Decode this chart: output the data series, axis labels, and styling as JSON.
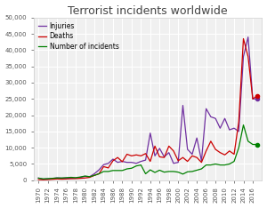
{
  "title": "Terrorist incidents worldwide",
  "years": [
    1970,
    1971,
    1972,
    1973,
    1974,
    1975,
    1976,
    1977,
    1978,
    1979,
    1980,
    1981,
    1982,
    1983,
    1984,
    1985,
    1986,
    1987,
    1988,
    1989,
    1990,
    1991,
    1992,
    1993,
    1994,
    1995,
    1996,
    1997,
    1998,
    1999,
    2000,
    2001,
    2002,
    2003,
    2004,
    2005,
    2006,
    2007,
    2008,
    2009,
    2010,
    2011,
    2012,
    2013,
    2014,
    2015,
    2016,
    2017
  ],
  "injuries": [
    700,
    300,
    450,
    550,
    750,
    650,
    700,
    600,
    700,
    900,
    1200,
    1100,
    2000,
    3200,
    4800,
    5200,
    6500,
    5500,
    5800,
    5500,
    5500,
    5200,
    5800,
    6200,
    14500,
    7500,
    9800,
    7200,
    8500,
    5200,
    5500,
    23000,
    9500,
    8000,
    13000,
    6000,
    22000,
    19500,
    19000,
    16000,
    19000,
    15500,
    16000,
    15000,
    38000,
    44000,
    25000,
    25000
  ],
  "deaths": [
    200,
    150,
    200,
    300,
    400,
    350,
    400,
    500,
    500,
    600,
    700,
    900,
    1500,
    2000,
    4200,
    3800,
    6000,
    7000,
    5700,
    8000,
    7500,
    7800,
    7500,
    8200,
    5800,
    10500,
    7200,
    7000,
    10500,
    9000,
    6000,
    7000,
    5800,
    7500,
    7000,
    5500,
    9000,
    12000,
    9500,
    8500,
    7800,
    9000,
    8000,
    18000,
    43500,
    38000,
    25000,
    26000
  ],
  "incidents": [
    650,
    450,
    500,
    600,
    700,
    700,
    800,
    900,
    800,
    1000,
    1300,
    1100,
    1500,
    2000,
    2700,
    2700,
    3000,
    3000,
    3000,
    3500,
    3700,
    4400,
    4700,
    2000,
    3200,
    2400,
    3100,
    2500,
    2700,
    2700,
    2500,
    1900,
    2600,
    2700,
    3100,
    3500,
    4700,
    4700,
    5000,
    4700,
    4700,
    5000,
    5800,
    10000,
    17000,
    12000,
    11000,
    11000
  ],
  "injuries_color": "#7030a0",
  "deaths_color": "#cc0000",
  "incidents_color": "#008000",
  "legend_labels": [
    "Injuries",
    "Deaths",
    "Number of incidents"
  ],
  "ylim": [
    0,
    50000
  ],
  "yticks": [
    0,
    5000,
    10000,
    15000,
    20000,
    25000,
    30000,
    35000,
    40000,
    45000,
    50000
  ],
  "ytick_labels": [
    "0",
    "5,000",
    "10,000",
    "15,000",
    "20,000",
    "25,000",
    "30,000",
    "35,000",
    "40,000",
    "45,000",
    "50,000"
  ],
  "background_color": "#ffffff",
  "plot_bg_color": "#f0f0f0",
  "grid_color": "#ffffff",
  "title_fontsize": 9,
  "tick_fontsize": 5,
  "legend_fontsize": 5.5
}
